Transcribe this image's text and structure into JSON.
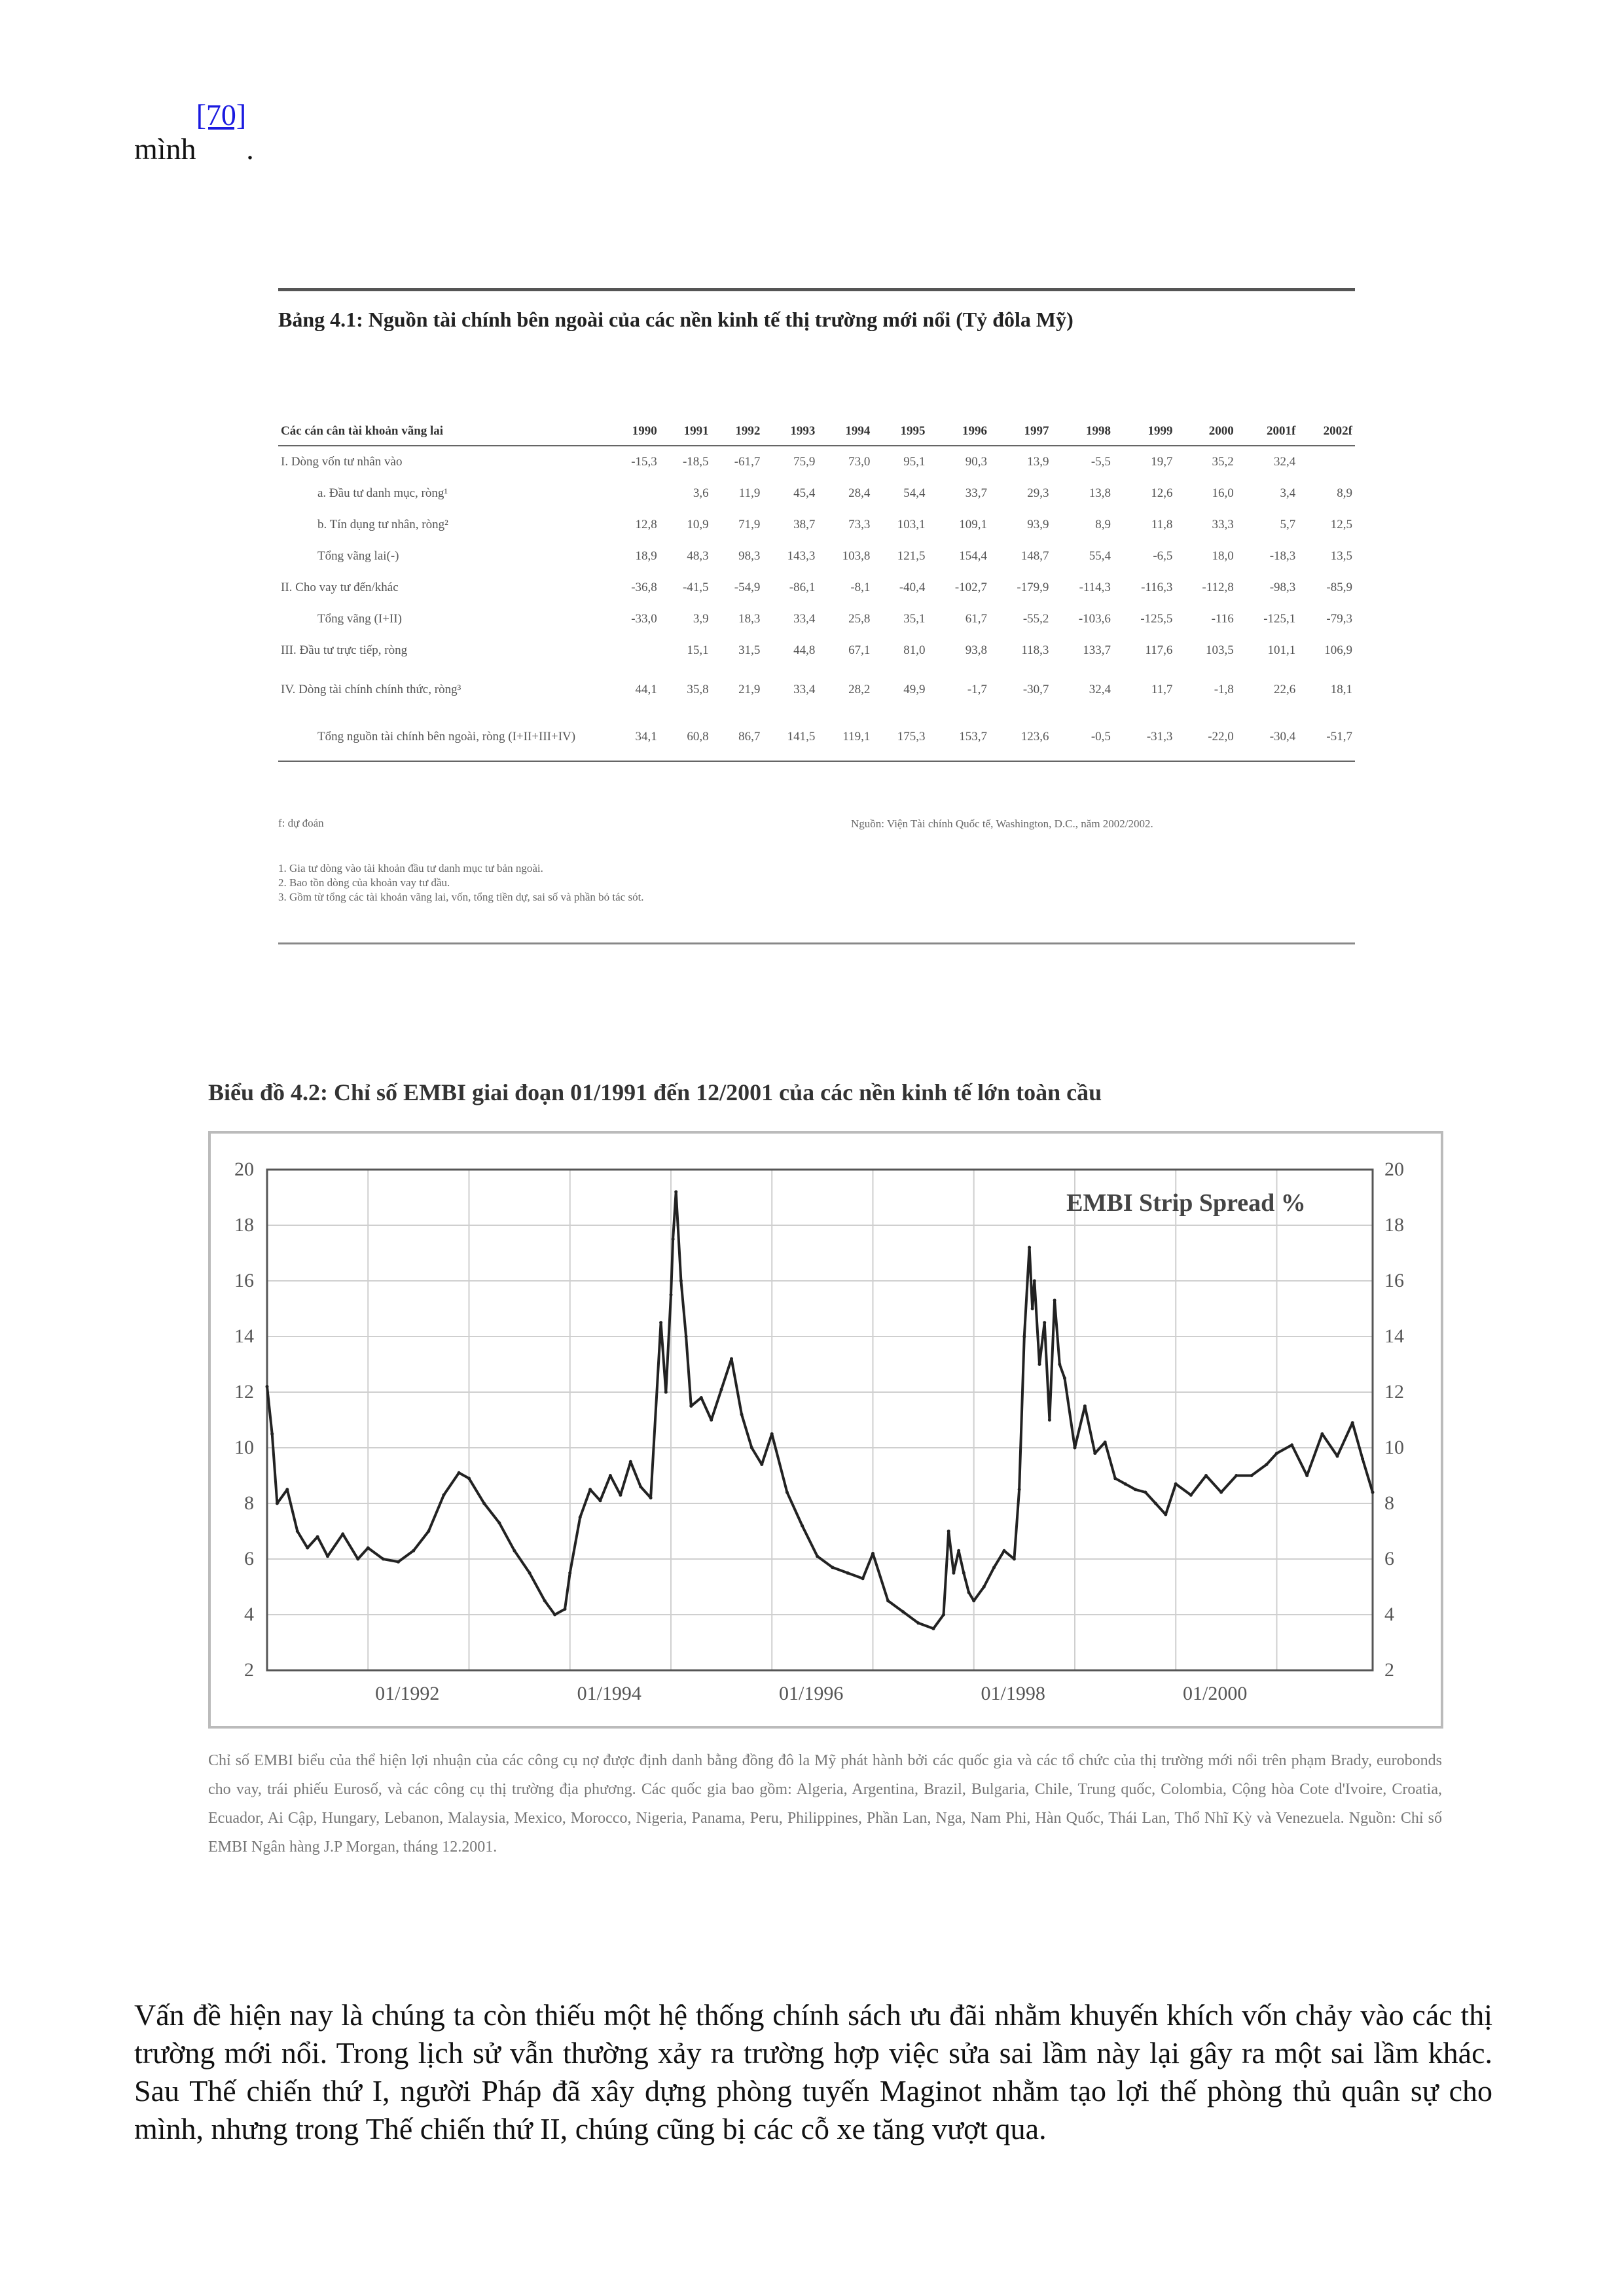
{
  "top_line": {
    "word": "mình",
    "ref": "[70]",
    "period": "."
  },
  "table": {
    "title": "Bảng 4.1: Nguồn tài chính bên ngoài của các nền kinh tế thị trường mới nổi (Tỷ đôla Mỹ)",
    "header_label": "Các cán cân tài khoản vãng lai",
    "years": [
      "1990",
      "1991",
      "1992",
      "1993",
      "1994",
      "1995",
      "1996",
      "1997",
      "1998",
      "1999",
      "2000",
      "2001f",
      "2002f"
    ],
    "rows": [
      {
        "label": "I.   Dòng vốn tư nhân vào",
        "indent": false,
        "tall": false,
        "values": [
          "-15,3",
          "-18,5",
          "-61,7",
          "75,9",
          "73,0",
          "95,1",
          "90,3",
          "13,9",
          "-5,5",
          "19,7",
          "35,2",
          "32,4",
          ""
        ]
      },
      {
        "label": "a. Đầu tư danh mục, ròng¹",
        "indent": true,
        "tall": false,
        "values": [
          "",
          "3,6",
          "11,9",
          "45,4",
          "28,4",
          "54,4",
          "33,7",
          "29,3",
          "13,8",
          "12,6",
          "16,0",
          "3,4",
          "8,9"
        ]
      },
      {
        "label": "b. Tín dụng tư nhân, ròng²",
        "indent": true,
        "tall": false,
        "values": [
          "12,8",
          "10,9",
          "71,9",
          "38,7",
          "73,3",
          "103,1",
          "109,1",
          "93,9",
          "8,9",
          "11,8",
          "33,3",
          "5,7",
          "12,5"
        ]
      },
      {
        "label": "Tổng vãng lai(-)",
        "indent": true,
        "tall": false,
        "values": [
          "18,9",
          "48,3",
          "98,3",
          "143,3",
          "103,8",
          "121,5",
          "154,4",
          "148,7",
          "55,4",
          "-6,5",
          "18,0",
          "-18,3",
          "13,5"
        ]
      },
      {
        "label": "II.   Cho vay tư đến/khác",
        "indent": false,
        "tall": false,
        "values": [
          "-36,8",
          "-41,5",
          "-54,9",
          "-86,1",
          "-8,1",
          "-40,4",
          "-102,7",
          "-179,9",
          "-114,3",
          "-116,3",
          "-112,8",
          "-98,3",
          "-85,9"
        ]
      },
      {
        "label": "Tổng vãng (I+II)",
        "indent": true,
        "tall": false,
        "values": [
          "-33,0",
          "3,9",
          "18,3",
          "33,4",
          "25,8",
          "35,1",
          "61,7",
          "-55,2",
          "-103,6",
          "-125,5",
          "-116",
          "-125,1",
          "-79,3"
        ]
      },
      {
        "label": "III. Đầu tư trực tiếp, ròng",
        "indent": false,
        "tall": false,
        "values": [
          "",
          "15,1",
          "31,5",
          "44,8",
          "67,1",
          "81,0",
          "93,8",
          "118,3",
          "133,7",
          "117,6",
          "103,5",
          "101,1",
          "106,9"
        ]
      },
      {
        "label": "IV. Dòng tài chính chính thức, ròng³",
        "indent": false,
        "tall": true,
        "values": [
          "44,1",
          "35,8",
          "21,9",
          "33,4",
          "28,2",
          "49,9",
          "-1,7",
          "-30,7",
          "32,4",
          "11,7",
          "-1,8",
          "22,6",
          "18,1"
        ]
      },
      {
        "label": "Tổng nguồn tài chính bên ngoài, ròng (I+II+III+IV)",
        "indent": true,
        "tall": true,
        "values": [
          "34,1",
          "60,8",
          "86,7",
          "141,5",
          "119,1",
          "175,3",
          "153,7",
          "123,6",
          "-0,5",
          "-31,3",
          "-22,0",
          "-30,4",
          "-51,7"
        ]
      }
    ],
    "unit_note": "f: dự đoán",
    "source_note": "Nguồn: Viện Tài chính Quốc tế, Washington, D.C., năm 2002/2002.",
    "footnotes": [
      "1. Gia tư dòng vào tài khoản đầu tư danh mục tư bản ngoài.",
      "2. Bao tồn dòng của khoản vay tư đầu.",
      "3. Gồm từ tổng các tài khoản vãng lai, vốn, tổng tiền dự, sai số và phần bỏ tác sót."
    ]
  },
  "chart_data": {
    "type": "line",
    "title": "Biểu đồ 4.2: Chỉ số EMBI giai đoạn 01/1991 đến 12/2001 của các nền kinh tế lớn toàn cầu",
    "legend_text": "EMBI Strip Spread %",
    "legend_position": "top-right",
    "xlabel": "",
    "ylabel": "",
    "x_tick_labels": [
      "01/1992",
      "01/1994",
      "01/1996",
      "01/1998",
      "01/2000"
    ],
    "y_ticks": [
      2,
      4,
      6,
      8,
      10,
      12,
      14,
      16,
      18,
      20
    ],
    "ylim": [
      2,
      20
    ],
    "xlim": [
      1991.0,
      2001.95
    ],
    "grid": true,
    "series": [
      {
        "x": [
          1991.0,
          1991.05,
          1991.1,
          1991.2,
          1991.3,
          1991.4,
          1991.5,
          1991.6,
          1991.75,
          1991.9,
          1992.0,
          1992.15,
          1992.3,
          1992.45,
          1992.6,
          1992.75,
          1992.9,
          1993.0,
          1993.15,
          1993.3,
          1993.45,
          1993.6,
          1993.75,
          1993.85,
          1993.95,
          1994.0,
          1994.1,
          1994.2,
          1994.3,
          1994.4,
          1994.5,
          1994.6,
          1994.7,
          1994.8,
          1994.9,
          1994.95,
          1995.0,
          1995.02,
          1995.05,
          1995.1,
          1995.15,
          1995.2,
          1995.3,
          1995.4,
          1995.5,
          1995.6,
          1995.7,
          1995.8,
          1995.9,
          1996.0,
          1996.15,
          1996.3,
          1996.45,
          1996.6,
          1996.75,
          1996.9,
          1997.0,
          1997.15,
          1997.3,
          1997.45,
          1997.6,
          1997.7,
          1997.75,
          1997.8,
          1997.85,
          1997.9,
          1997.95,
          1998.0,
          1998.1,
          1998.2,
          1998.3,
          1998.4,
          1998.45,
          1998.5,
          1998.55,
          1998.58,
          1998.6,
          1998.65,
          1998.7,
          1998.75,
          1998.8,
          1998.85,
          1998.9,
          1999.0,
          1999.1,
          1999.2,
          1999.3,
          1999.4,
          1999.5,
          1999.6,
          1999.7,
          1999.8,
          1999.9,
          2000.0,
          2000.15,
          2000.3,
          2000.45,
          2000.6,
          2000.75,
          2000.9,
          2001.0,
          2001.15,
          2001.3,
          2001.45,
          2001.6,
          2001.75,
          2001.85,
          2001.95
        ],
        "y": [
          12.2,
          10.5,
          8.0,
          8.5,
          7.0,
          6.4,
          6.8,
          6.1,
          6.9,
          6.0,
          6.4,
          6.0,
          5.9,
          6.3,
          7.0,
          8.3,
          9.1,
          8.9,
          8.0,
          7.3,
          6.3,
          5.5,
          4.5,
          4.0,
          4.2,
          5.5,
          7.5,
          8.5,
          8.1,
          9.0,
          8.3,
          9.5,
          8.6,
          8.2,
          14.5,
          12.0,
          15.5,
          17.5,
          19.2,
          16.0,
          14.0,
          11.5,
          11.8,
          11.0,
          12.1,
          13.2,
          11.2,
          10.0,
          9.4,
          10.5,
          8.4,
          7.2,
          6.1,
          5.7,
          5.5,
          5.3,
          6.2,
          4.5,
          4.1,
          3.7,
          3.5,
          4.0,
          7.0,
          5.5,
          6.3,
          5.5,
          4.8,
          4.5,
          5.0,
          5.7,
          6.3,
          6.0,
          8.5,
          14.0,
          17.2,
          15.0,
          16.0,
          13.0,
          14.5,
          11.0,
          15.3,
          13.0,
          12.5,
          10.0,
          11.5,
          9.8,
          10.2,
          8.9,
          8.7,
          8.5,
          8.4,
          8.0,
          7.6,
          8.7,
          8.3,
          9.0,
          8.4,
          9.0,
          9.0,
          9.4,
          9.8,
          10.1,
          9.0,
          10.5,
          9.7,
          10.9,
          9.6,
          8.4
        ]
      }
    ]
  },
  "chart_caption": "Chỉ số EMBI biểu của thể hiện lợi nhuận của các công cụ nợ được định danh bằng đồng đô la Mỹ phát hành bởi các quốc gia và các tổ chức của thị trường mới nổi trên phạm Brady, eurobonds cho vay, trái phiếu Eurosố, và các công cụ thị trường địa phương. Các quốc gia bao gồm: Algeria, Argentina, Brazil, Bulgaria, Chile, Trung quốc, Colombia, Cộng hòa Cote d'Ivoire, Croatia, Ecuador, Ai Cập, Hungary, Lebanon, Malaysia, Mexico, Morocco, Nigeria, Panama, Peru, Philippines, Phần Lan, Nga, Nam Phi, Hàn Quốc, Thái Lan, Thổ Nhĩ Kỳ và Venezuela. Nguồn: Chỉ số EMBI Ngân hàng J.P Morgan, tháng 12.2001.",
  "body_paragraph": "Vấn đề hiện nay là chúng ta còn thiếu một hệ thống chính sách ưu đãi nhằm khuyến khích vốn chảy vào các thị trường mới nổi. Trong lịch sử vẫn thường xảy ra trường hợp việc sửa sai lầm này lại gây ra một sai lầm khác. Sau Thế chiến thứ I, người Pháp đã xây dựng phòng tuyến Maginot nhằm tạo lợi thế phòng thủ quân sự cho mình, nhưng trong Thế chiến thứ II, chúng cũng bị các cỗ xe tăng vượt qua."
}
